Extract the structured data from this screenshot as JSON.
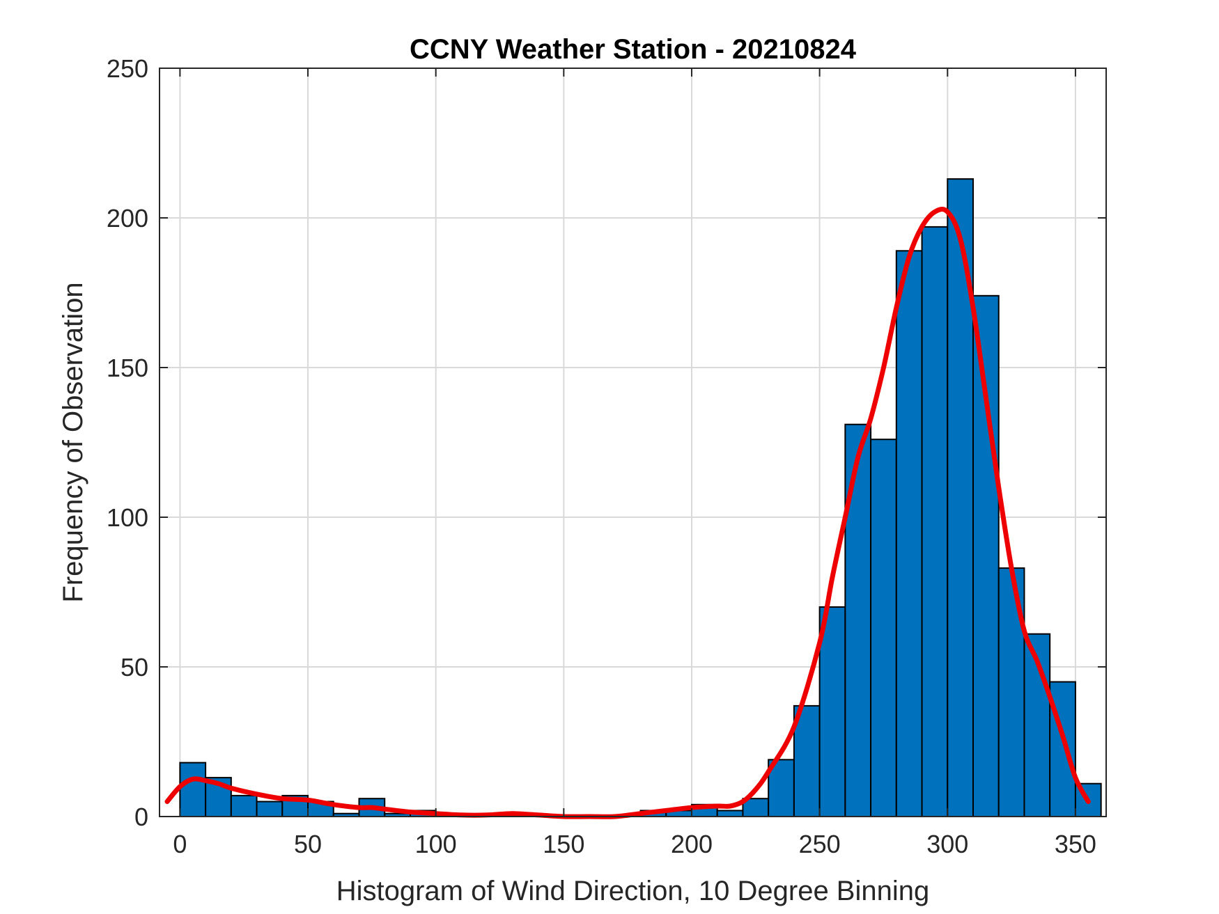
{
  "chart_data": {
    "type": "bar",
    "title": "CCNY Weather Station - 20210824",
    "xlabel": "Histogram of Wind Direction, 10 Degree Binning",
    "ylabel": "Frequency of Observation",
    "xlim": [
      -8,
      362
    ],
    "ylim": [
      0,
      250
    ],
    "xticks": [
      0,
      50,
      100,
      150,
      200,
      250,
      300,
      350
    ],
    "yticks": [
      0,
      50,
      100,
      150,
      200,
      250
    ],
    "grid": true,
    "bin_width": 10,
    "bin_edges": [
      0,
      10,
      20,
      30,
      40,
      50,
      60,
      70,
      80,
      90,
      100,
      110,
      120,
      130,
      140,
      150,
      160,
      170,
      180,
      190,
      200,
      210,
      220,
      230,
      240,
      250,
      260,
      270,
      280,
      290,
      300,
      310,
      320,
      330,
      340,
      350,
      360
    ],
    "values": [
      18,
      13,
      7,
      5,
      7,
      5,
      1,
      6,
      1,
      2,
      1,
      0,
      0,
      1,
      0,
      0,
      0,
      0,
      2,
      2,
      4,
      2,
      6,
      19,
      37,
      70,
      131,
      126,
      189,
      197,
      213,
      174,
      83,
      61,
      45,
      11
    ],
    "bar_color": "#0072BD",
    "edge_color": "#000000",
    "fit_curve": {
      "color": "#EE0000",
      "x": [
        -5,
        0,
        5,
        10,
        15,
        20,
        30,
        40,
        50,
        60,
        70,
        75,
        80,
        90,
        100,
        110,
        120,
        130,
        140,
        150,
        160,
        170,
        180,
        190,
        200,
        210,
        215,
        220,
        225,
        230,
        240,
        250,
        255,
        260,
        265,
        270,
        275,
        280,
        285,
        290,
        295,
        300,
        305,
        310,
        315,
        320,
        325,
        330,
        335,
        340,
        345,
        350,
        355
      ],
      "y": [
        5,
        10,
        12.5,
        12,
        11,
        9.5,
        7.5,
        6,
        5.5,
        4,
        3,
        3,
        2.5,
        1.5,
        1,
        0.5,
        0.5,
        1,
        0.5,
        0,
        0,
        0,
        1,
        2,
        3,
        3.5,
        3.5,
        5,
        9,
        15,
        30,
        58,
        80,
        100,
        120,
        133,
        150,
        170,
        187,
        197,
        202,
        202,
        193,
        170,
        140,
        110,
        83,
        62,
        52,
        40,
        27,
        13,
        5
      ]
    }
  }
}
